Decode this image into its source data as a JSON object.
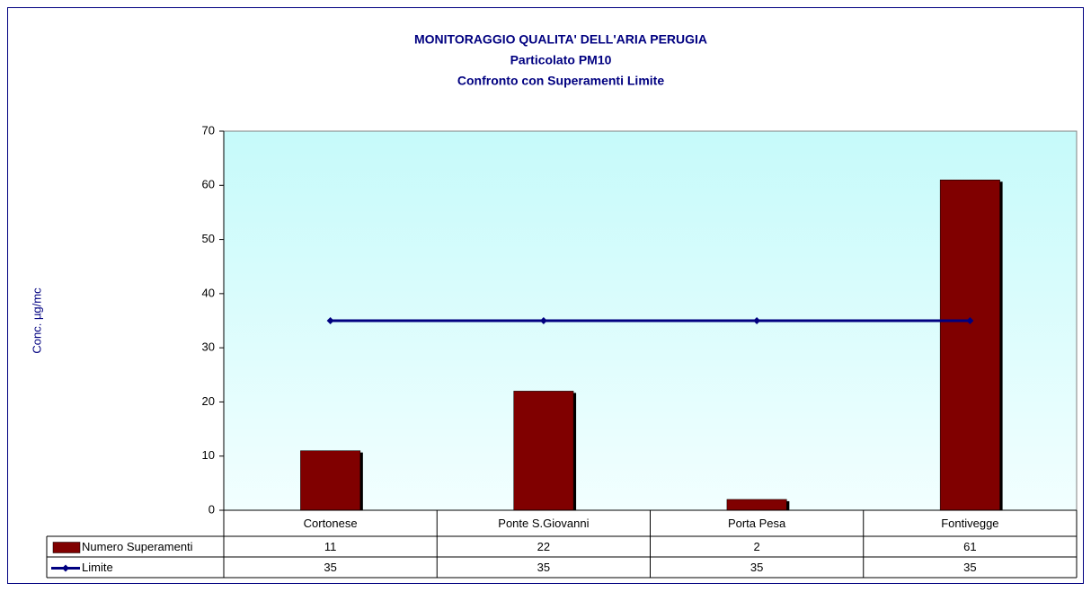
{
  "chart_data": {
    "type": "bar",
    "title": "MONITORAGGIO QUALITA' DELL'ARIA  PERUGIA",
    "subtitle": [
      "Particolato PM10",
      "Confronto con Superamenti Limite"
    ],
    "y_label": "Conc. µg/mc",
    "categories": [
      "Cortonese",
      "Ponte S.Giovanni",
      "Porta Pesa",
      "Fontivegge"
    ],
    "series": [
      {
        "name": "Numero Superamenti",
        "type": "bar",
        "color": "#800000",
        "values": [
          11,
          22,
          2,
          61
        ]
      },
      {
        "name": "Limite",
        "type": "line",
        "color": "#000080",
        "values": [
          35,
          35,
          35,
          35
        ]
      }
    ],
    "ylim": [
      0,
      70
    ],
    "yticks": [
      0,
      10,
      20,
      30,
      40,
      50,
      60,
      70
    ],
    "grid": false,
    "data_table": true
  }
}
